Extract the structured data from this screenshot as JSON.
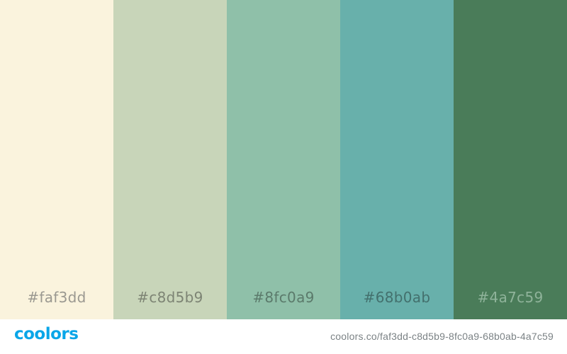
{
  "palette": {
    "swatches": [
      {
        "hex": "#faf3dd",
        "label": "#faf3dd",
        "label_color": "#9a9890"
      },
      {
        "hex": "#c8d5b9",
        "label": "#c8d5b9",
        "label_color": "#7d8474"
      },
      {
        "hex": "#8fc0a9",
        "label": "#8fc0a9",
        "label_color": "#5b7a6b"
      },
      {
        "hex": "#68b0ab",
        "label": "#68b0ab",
        "label_color": "#43706d"
      },
      {
        "hex": "#4a7c59",
        "label": "#4a7c59",
        "label_color": "#8fb39a"
      }
    ]
  },
  "footer": {
    "logo_text": "coolors",
    "logo_color": "#0aa6e8",
    "url": "coolors.co/faf3dd-c8d5b9-8fc0a9-68b0ab-4a7c59"
  }
}
